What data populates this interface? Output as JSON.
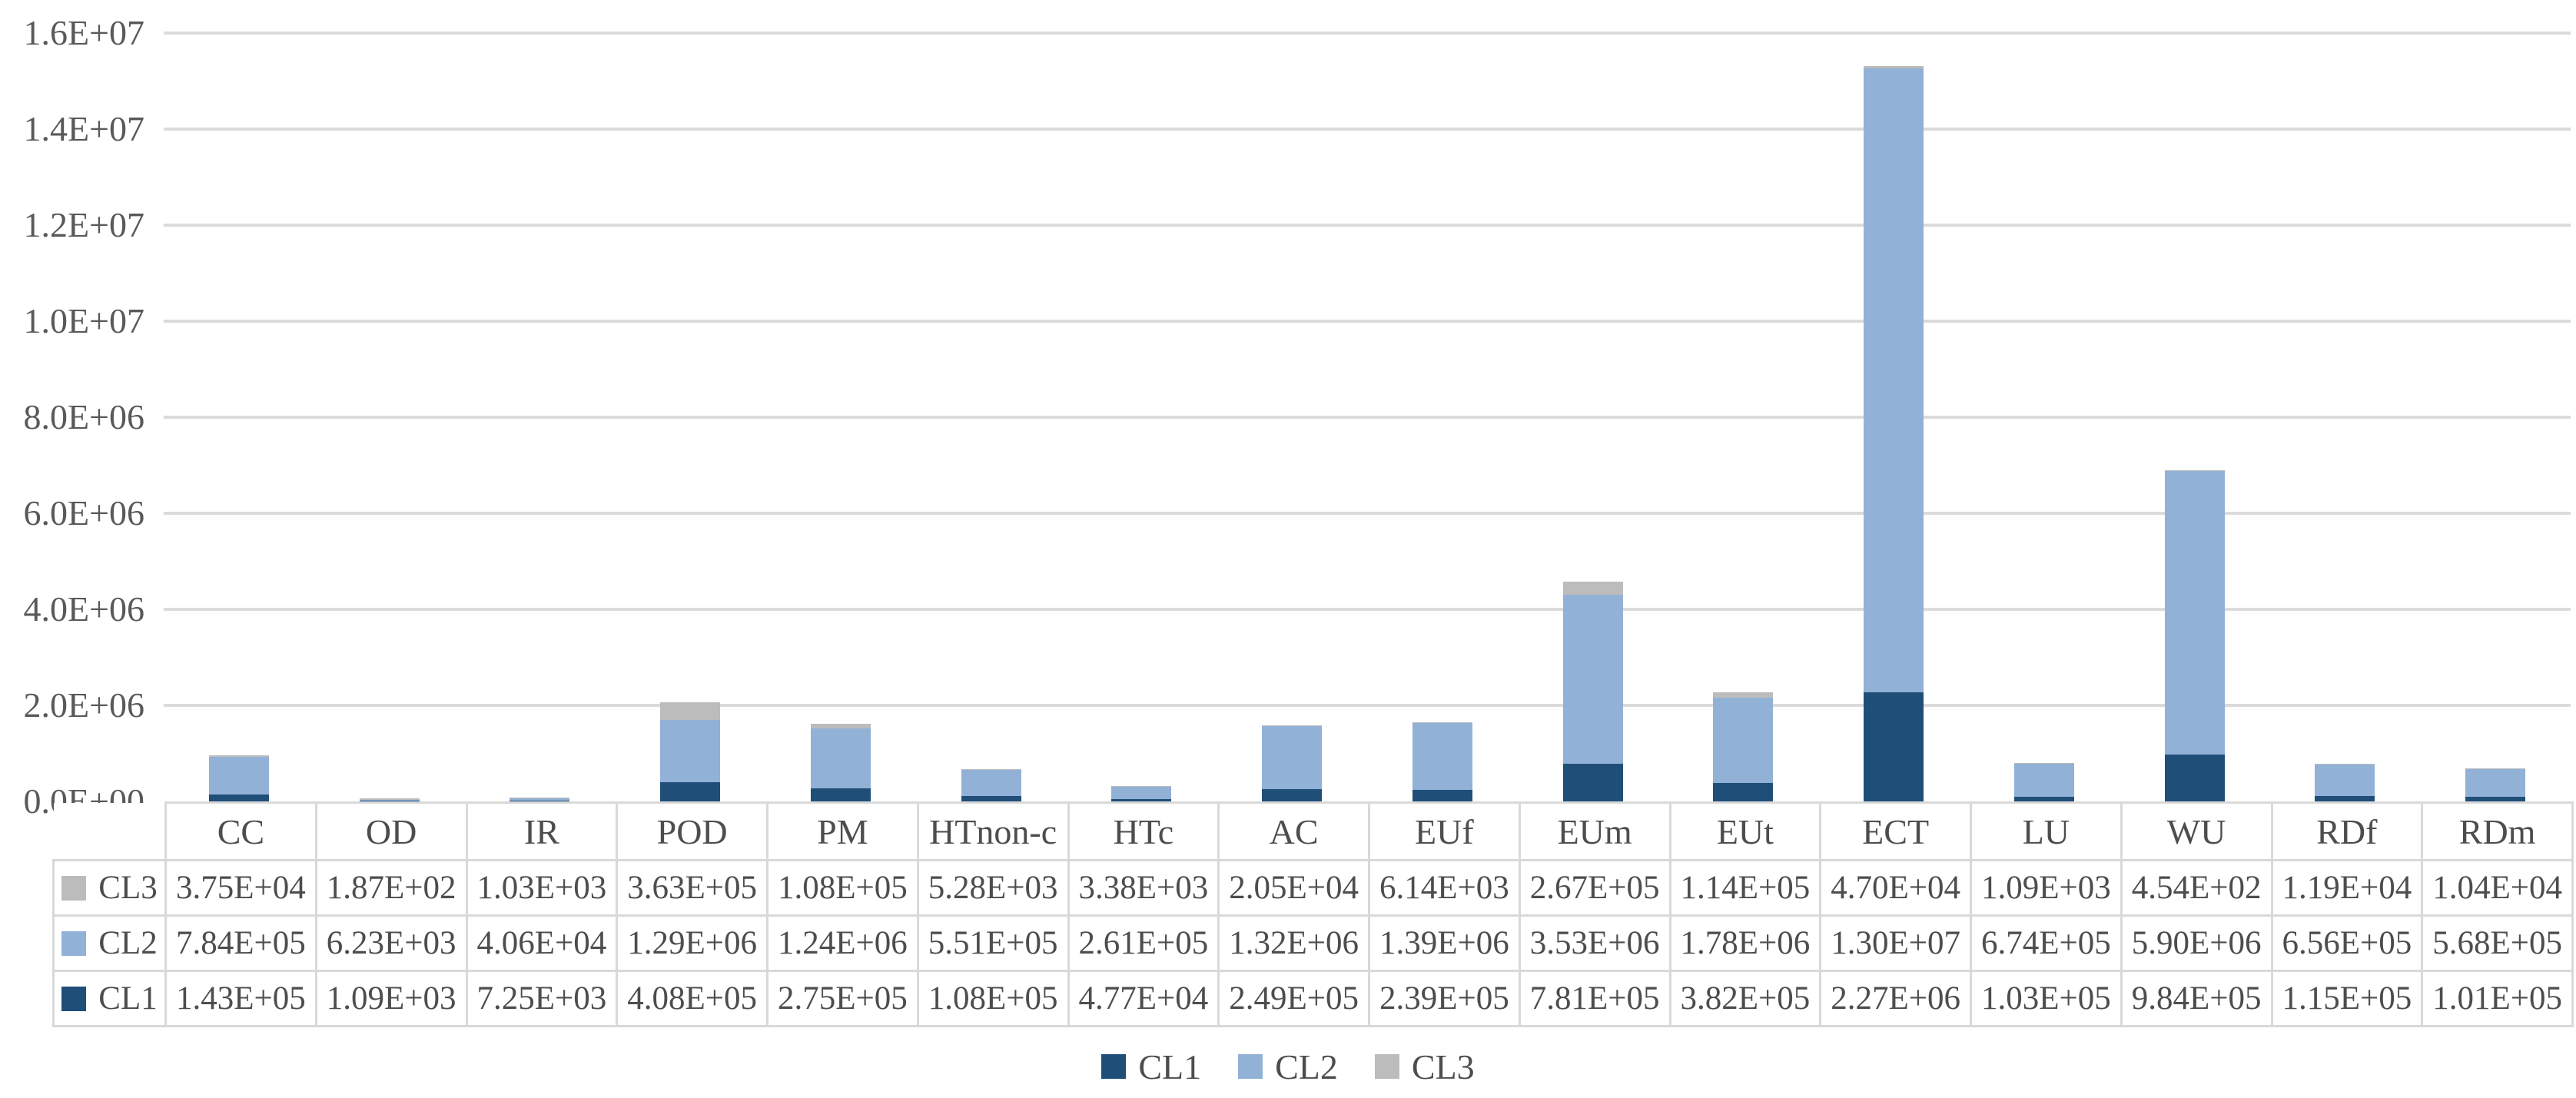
{
  "figure": {
    "background": "#FFFFFF",
    "text_color": "#4d4d4d",
    "axis_text_color": "#595959",
    "gridline_color": "#DBDBDB",
    "table_border_color": "#D9D9D9"
  },
  "chart_data": {
    "type": "bar",
    "stacked": true,
    "title": "",
    "xlabel": "",
    "ylabel": "",
    "grid": true,
    "legend_position": "bottom",
    "ylim": [
      0,
      16000000
    ],
    "y_ticks": [
      "0.0E+00",
      "2.0E+06",
      "4.0E+06",
      "6.0E+06",
      "8.0E+06",
      "1.0E+07",
      "1.2E+07",
      "1.4E+07",
      "1.6E+07"
    ],
    "categories": [
      "CC",
      "OD",
      "IR",
      "POD",
      "PM",
      "HTnon-c",
      "HTc",
      "AC",
      "EUf",
      "EUm",
      "EUt",
      "ECT",
      "LU",
      "WU",
      "RDf",
      "RDm"
    ],
    "series": [
      {
        "name": "CL1",
        "color": "#1F4E79",
        "values": [
          "1.43E+05",
          "1.09E+03",
          "7.25E+03",
          "4.08E+05",
          "2.75E+05",
          "1.08E+05",
          "4.77E+04",
          "2.49E+05",
          "2.39E+05",
          "7.81E+05",
          "3.82E+05",
          "2.27E+06",
          "1.03E+05",
          "9.84E+05",
          "1.15E+05",
          "1.01E+05"
        ]
      },
      {
        "name": "CL2",
        "color": "#92B1D6",
        "values": [
          "7.84E+05",
          "6.23E+03",
          "4.06E+04",
          "1.29E+06",
          "1.24E+06",
          "5.51E+05",
          "2.61E+05",
          "1.32E+06",
          "1.39E+06",
          "3.53E+06",
          "1.78E+06",
          "1.30E+07",
          "6.74E+05",
          "5.90E+06",
          "6.56E+05",
          "5.68E+05"
        ]
      },
      {
        "name": "CL3",
        "color": "#BCBCBC",
        "values": [
          "3.75E+04",
          "1.87E+02",
          "1.03E+03",
          "3.63E+05",
          "1.08E+05",
          "5.28E+03",
          "3.38E+03",
          "2.05E+04",
          "6.14E+03",
          "2.67E+05",
          "1.14E+05",
          "4.70E+04",
          "1.09E+03",
          "4.54E+02",
          "1.19E+04",
          "1.04E+04"
        ]
      }
    ],
    "data_table_row_order": [
      "CL3",
      "CL2",
      "CL1"
    ]
  }
}
